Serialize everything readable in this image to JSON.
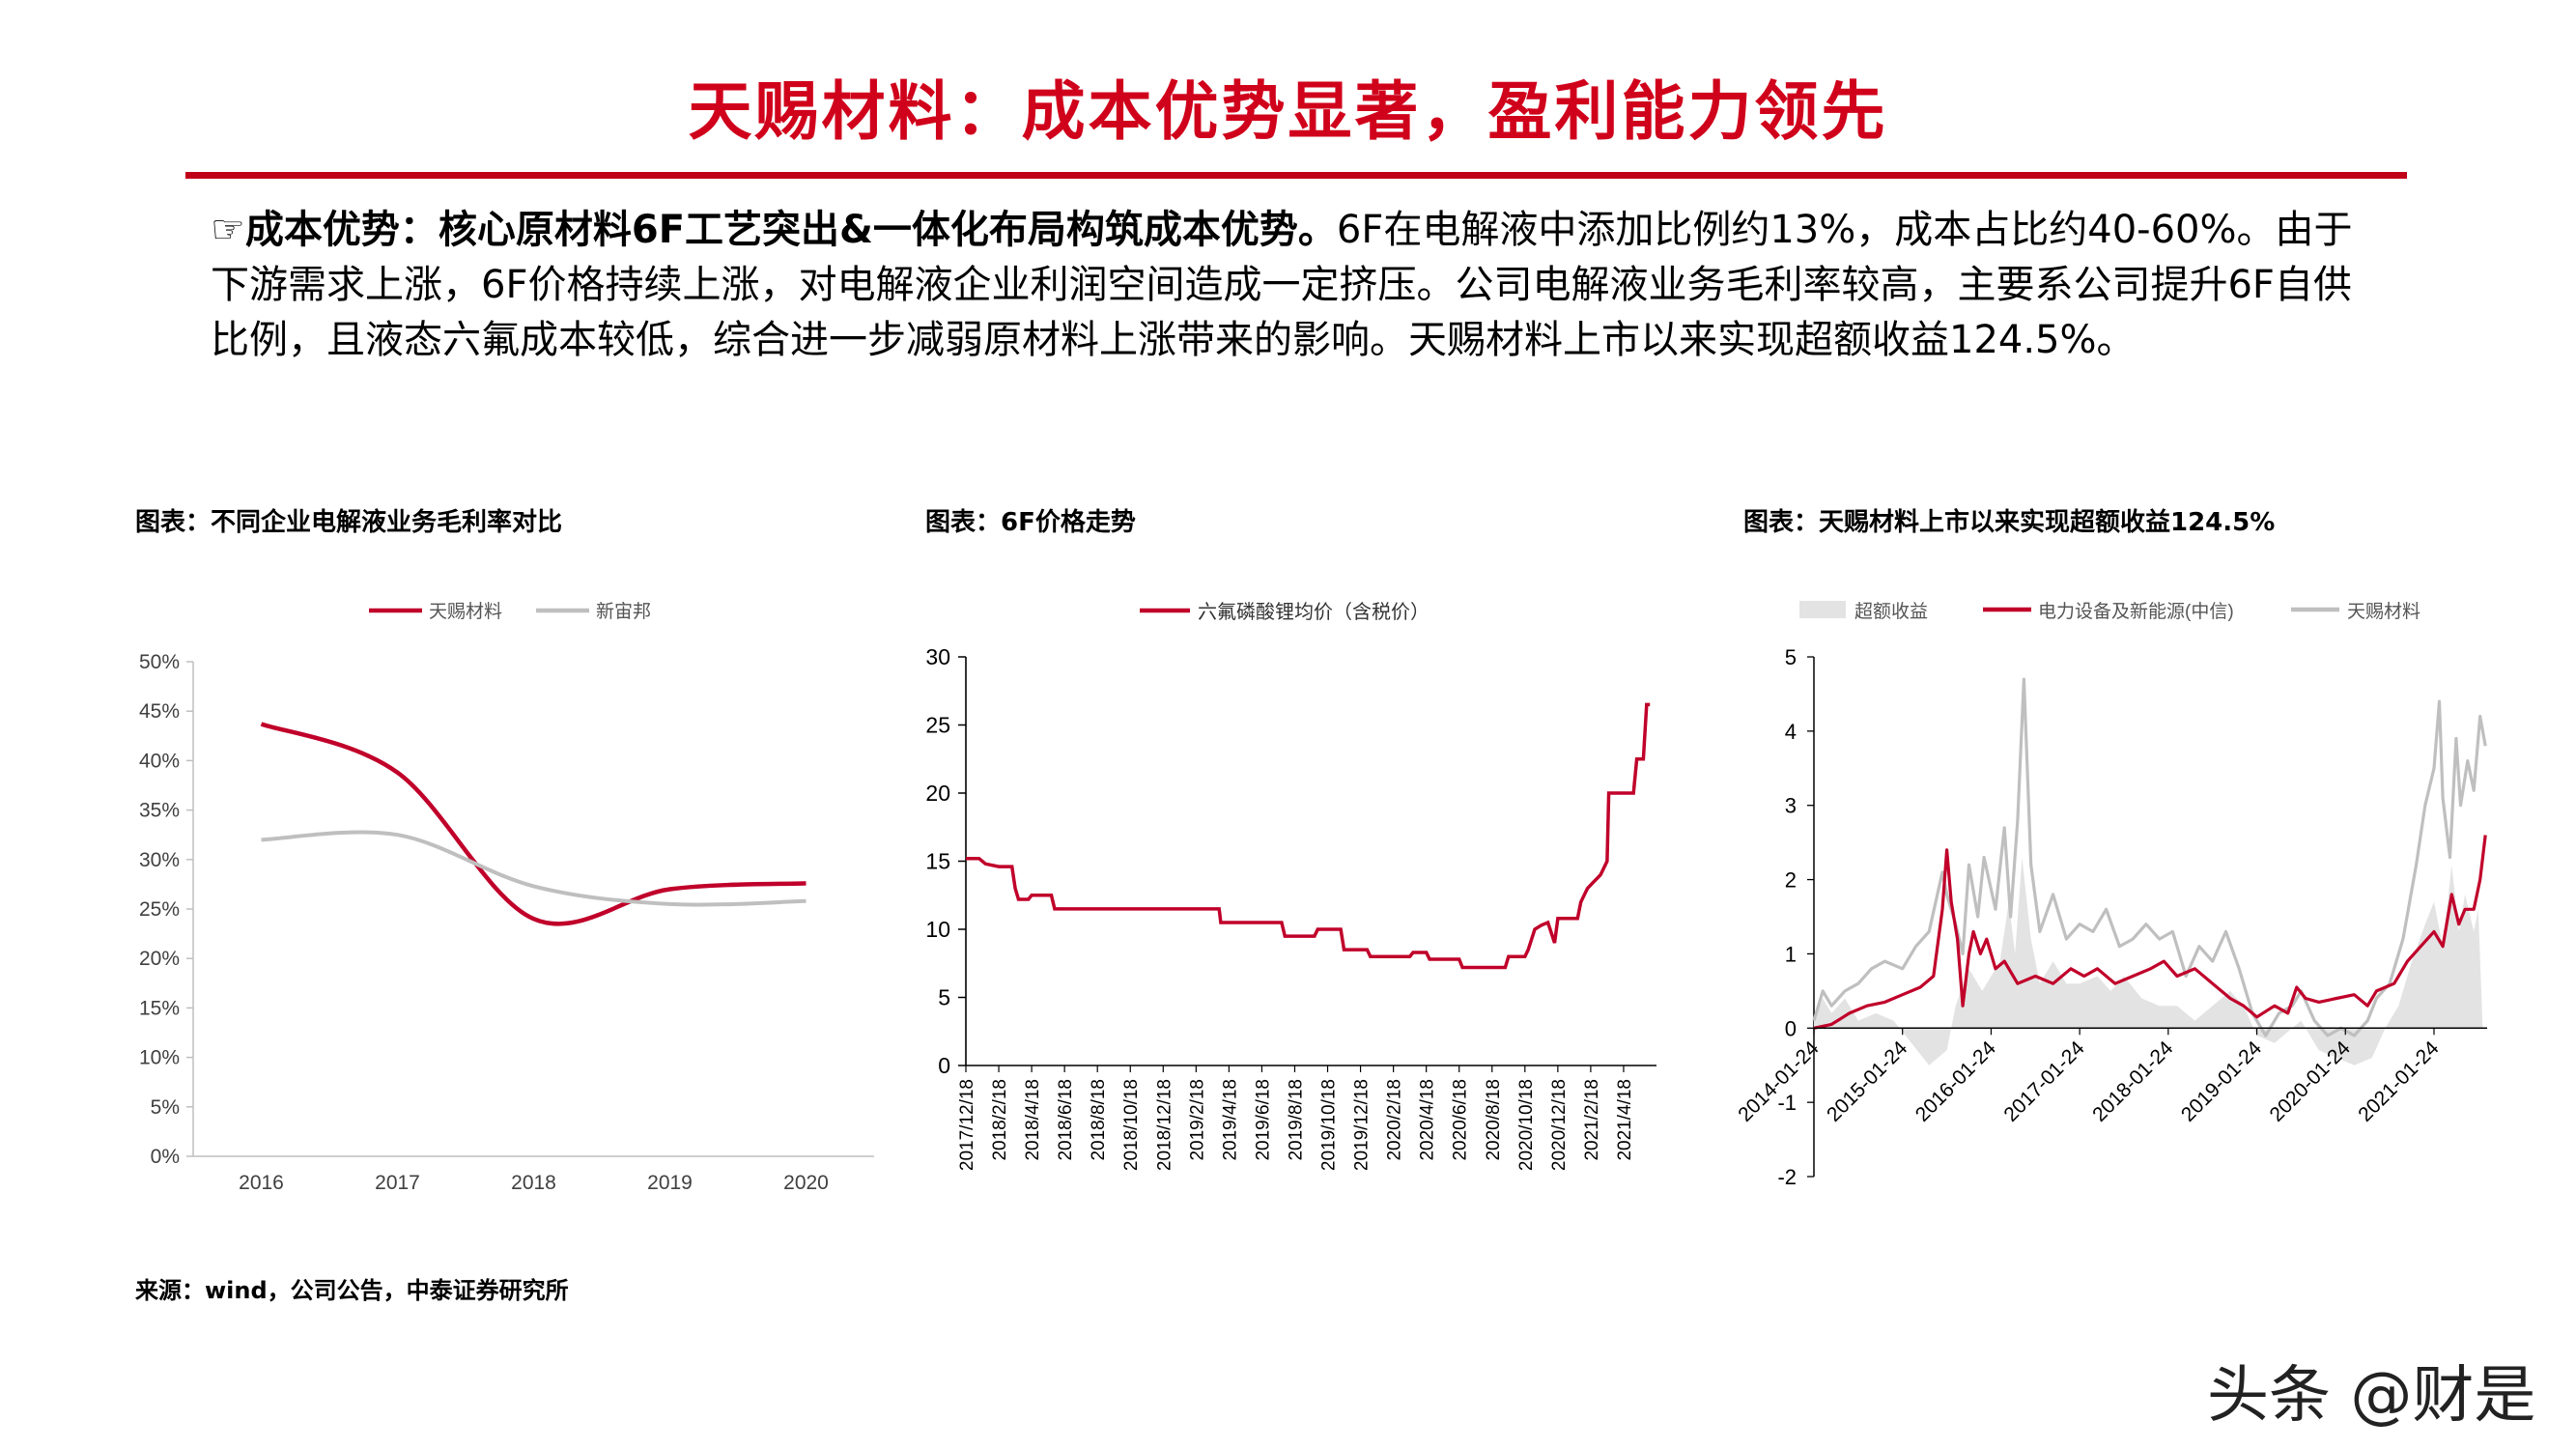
{
  "title": "天赐材料：成本优势显著，盈利能力领先",
  "paragraph": {
    "lead": "☞成本优势：核心原材料6F工艺突出&一体化布局构筑成本优势。",
    "body": "6F在电解液中添加比例约13%，成本占比约40-60%。由于下游需求上涨，6F价格持续上涨，对电解液企业利润空间造成一定挤压。公司电解液业务毛利率较高，主要系公司提升6F自供比例，且液态六氟成本较低，综合进一步减弱原材料上涨带来的影响。天赐材料上市以来实现超额收益124.5%。"
  },
  "figures": {
    "fig1_title": "图表：不同企业电解液业务毛利率对比",
    "fig2_title": "图表：6F价格走势",
    "fig3_title": "图表：天赐材料上市以来实现超额收益124.5%"
  },
  "source": "来源：wind，公司公告，中泰证券研究所",
  "watermark": "头条 @财是",
  "colors": {
    "red": "#c0002a",
    "gray": "#bfbfbf",
    "light": "#e3e3e3",
    "title_red": "#d0021b"
  },
  "chart_data": [
    {
      "type": "line",
      "categories": [
        "2016",
        "2017",
        "2018",
        "2019",
        "2020"
      ],
      "series": [
        {
          "name": "天赐材料",
          "values": [
            0.437,
            0.388,
            0.24,
            0.27,
            0.276
          ]
        },
        {
          "name": "新宙邦",
          "values": [
            0.32,
            0.325,
            0.273,
            0.255,
            0.258
          ]
        }
      ],
      "y_ticks": [
        "0%",
        "5%",
        "10%",
        "15%",
        "20%",
        "25%",
        "30%",
        "35%",
        "40%",
        "45%",
        "50%"
      ],
      "ylim": [
        0,
        0.5
      ],
      "legend": "top"
    },
    {
      "type": "line",
      "categories": [
        "2017/12/18",
        "2018/2/18",
        "2018/4/18",
        "2018/6/18",
        "2018/8/18",
        "2018/10/18",
        "2018/12/18",
        "2019/2/18",
        "2019/4/18",
        "2019/6/18",
        "2019/8/18",
        "2019/10/18",
        "2019/12/18",
        "2020/2/18",
        "2020/4/18",
        "2020/6/18",
        "2020/8/18",
        "2020/10/18",
        "2020/12/18",
        "2021/2/18",
        "2021/4/18"
      ],
      "series": [
        {
          "name": "六氟磷酸锂均价（含税价）",
          "points": [
            [
              0,
              15.2
            ],
            [
              0.4,
              15.2
            ],
            [
              0.6,
              14.8
            ],
            [
              1.0,
              14.6
            ],
            [
              1.4,
              14.6
            ],
            [
              1.5,
              13.0
            ],
            [
              1.6,
              12.2
            ],
            [
              1.9,
              12.2
            ],
            [
              2.0,
              12.5
            ],
            [
              2.6,
              12.5
            ],
            [
              2.7,
              11.5
            ],
            [
              4.5,
              11.5
            ],
            [
              7.7,
              11.5
            ],
            [
              7.75,
              10.5
            ],
            [
              9.6,
              10.5
            ],
            [
              9.7,
              9.5
            ],
            [
              10.6,
              9.5
            ],
            [
              10.7,
              10.0
            ],
            [
              11.4,
              10.0
            ],
            [
              11.5,
              8.5
            ],
            [
              12.2,
              8.5
            ],
            [
              12.3,
              8.0
            ],
            [
              13.5,
              8.0
            ],
            [
              13.6,
              8.3
            ],
            [
              14.0,
              8.3
            ],
            [
              14.1,
              7.8
            ],
            [
              15.0,
              7.8
            ],
            [
              15.1,
              7.2
            ],
            [
              16.4,
              7.2
            ],
            [
              16.5,
              8.0
            ],
            [
              17.0,
              8.0
            ],
            [
              17.1,
              8.5
            ],
            [
              17.3,
              10.0
            ],
            [
              17.5,
              10.3
            ],
            [
              17.7,
              10.5
            ],
            [
              17.9,
              9.0
            ],
            [
              18.0,
              10.8
            ],
            [
              18.6,
              10.8
            ],
            [
              18.7,
              12.0
            ],
            [
              18.9,
              13.0
            ],
            [
              19.1,
              13.5
            ],
            [
              19.3,
              14.0
            ],
            [
              19.5,
              15.0
            ],
            [
              19.55,
              20.0
            ],
            [
              20.3,
              20.0
            ],
            [
              20.4,
              22.5
            ],
            [
              20.6,
              22.5
            ],
            [
              20.7,
              26.5
            ],
            [
              20.8,
              26.5
            ]
          ]
        }
      ],
      "xlim": [
        0,
        21
      ],
      "y_ticks": [
        "0",
        "5",
        "10",
        "15",
        "20",
        "25",
        "30"
      ],
      "ylim": [
        0,
        30
      ],
      "legend": "top"
    },
    {
      "type": "area",
      "categories": [
        "2014-01-24",
        "2015-01-24",
        "2016-01-24",
        "2017-01-24",
        "2018-01-24",
        "2019-01-24",
        "2020-01-24",
        "2021-01-24"
      ],
      "xlim": [
        2014.0,
        2021.6
      ],
      "y_ticks": [
        "-2",
        "-1",
        "0",
        "1",
        "2",
        "3",
        "4",
        "5"
      ],
      "ylim": [
        -2,
        5
      ],
      "series": [
        {
          "name": "超额收益",
          "kind": "area",
          "points": [
            [
              2014.0,
              0.1
            ],
            [
              2014.1,
              0.4
            ],
            [
              2014.2,
              0.2
            ],
            [
              2014.35,
              0.4
            ],
            [
              2014.5,
              0.1
            ],
            [
              2014.7,
              0.2
            ],
            [
              2014.9,
              0.1
            ],
            [
              2015.1,
              -0.2
            ],
            [
              2015.3,
              -0.5
            ],
            [
              2015.5,
              -0.3
            ],
            [
              2015.6,
              0.3
            ],
            [
              2015.75,
              0.8
            ],
            [
              2015.9,
              0.5
            ],
            [
              2016.1,
              0.9
            ],
            [
              2016.2,
              1.7
            ],
            [
              2016.27,
              1.0
            ],
            [
              2016.35,
              2.3
            ],
            [
              2016.45,
              1.2
            ],
            [
              2016.55,
              0.6
            ],
            [
              2016.7,
              0.9
            ],
            [
              2016.85,
              0.6
            ],
            [
              2017.0,
              0.6
            ],
            [
              2017.2,
              0.7
            ],
            [
              2017.35,
              0.5
            ],
            [
              2017.5,
              0.7
            ],
            [
              2017.7,
              0.4
            ],
            [
              2017.9,
              0.3
            ],
            [
              2018.1,
              0.3
            ],
            [
              2018.3,
              0.1
            ],
            [
              2018.5,
              0.3
            ],
            [
              2018.7,
              0.5
            ],
            [
              2018.85,
              0.3
            ],
            [
              2019.0,
              -0.1
            ],
            [
              2019.2,
              -0.2
            ],
            [
              2019.4,
              0.0
            ],
            [
              2019.5,
              0.1
            ],
            [
              2019.7,
              -0.3
            ],
            [
              2019.9,
              -0.4
            ],
            [
              2020.1,
              -0.5
            ],
            [
              2020.3,
              -0.4
            ],
            [
              2020.45,
              0.0
            ],
            [
              2020.6,
              0.3
            ],
            [
              2020.75,
              0.9
            ],
            [
              2020.9,
              1.4
            ],
            [
              2021.0,
              1.7
            ],
            [
              2021.1,
              1.1
            ],
            [
              2021.2,
              2.2
            ],
            [
              2021.28,
              1.3
            ],
            [
              2021.35,
              1.8
            ],
            [
              2021.45,
              1.3
            ],
            [
              2021.5,
              1.6
            ],
            [
              2021.55,
              0.0
            ]
          ]
        },
        {
          "name": "电力设备及新能源(中信)",
          "kind": "line",
          "points": [
            [
              2014.0,
              0.0
            ],
            [
              2014.2,
              0.05
            ],
            [
              2014.4,
              0.2
            ],
            [
              2014.6,
              0.3
            ],
            [
              2014.8,
              0.35
            ],
            [
              2015.0,
              0.45
            ],
            [
              2015.2,
              0.55
            ],
            [
              2015.35,
              0.7
            ],
            [
              2015.45,
              1.6
            ],
            [
              2015.5,
              2.4
            ],
            [
              2015.55,
              1.7
            ],
            [
              2015.62,
              1.2
            ],
            [
              2015.68,
              0.3
            ],
            [
              2015.75,
              1.0
            ],
            [
              2015.8,
              1.3
            ],
            [
              2015.88,
              1.0
            ],
            [
              2015.95,
              1.2
            ],
            [
              2016.05,
              0.8
            ],
            [
              2016.15,
              0.9
            ],
            [
              2016.3,
              0.6
            ],
            [
              2016.5,
              0.7
            ],
            [
              2016.7,
              0.6
            ],
            [
              2016.9,
              0.8
            ],
            [
              2017.05,
              0.7
            ],
            [
              2017.2,
              0.8
            ],
            [
              2017.4,
              0.6
            ],
            [
              2017.6,
              0.7
            ],
            [
              2017.8,
              0.8
            ],
            [
              2017.95,
              0.9
            ],
            [
              2018.1,
              0.7
            ],
            [
              2018.3,
              0.8
            ],
            [
              2018.5,
              0.6
            ],
            [
              2018.7,
              0.4
            ],
            [
              2018.85,
              0.3
            ],
            [
              2019.0,
              0.15
            ],
            [
              2019.2,
              0.3
            ],
            [
              2019.35,
              0.2
            ],
            [
              2019.45,
              0.55
            ],
            [
              2019.55,
              0.4
            ],
            [
              2019.7,
              0.35
            ],
            [
              2019.9,
              0.4
            ],
            [
              2020.1,
              0.45
            ],
            [
              2020.25,
              0.3
            ],
            [
              2020.35,
              0.5
            ],
            [
              2020.55,
              0.6
            ],
            [
              2020.7,
              0.9
            ],
            [
              2020.85,
              1.1
            ],
            [
              2021.0,
              1.3
            ],
            [
              2021.1,
              1.1
            ],
            [
              2021.2,
              1.8
            ],
            [
              2021.28,
              1.4
            ],
            [
              2021.35,
              1.6
            ],
            [
              2021.45,
              1.6
            ],
            [
              2021.52,
              2.0
            ],
            [
              2021.58,
              2.6
            ]
          ]
        },
        {
          "name": "天赐材料",
          "kind": "line",
          "points": [
            [
              2014.0,
              0.1
            ],
            [
              2014.1,
              0.5
            ],
            [
              2014.2,
              0.3
            ],
            [
              2014.35,
              0.5
            ],
            [
              2014.5,
              0.6
            ],
            [
              2014.65,
              0.8
            ],
            [
              2014.8,
              0.9
            ],
            [
              2015.0,
              0.8
            ],
            [
              2015.15,
              1.1
            ],
            [
              2015.3,
              1.3
            ],
            [
              2015.45,
              2.1
            ],
            [
              2015.5,
              1.8
            ],
            [
              2015.6,
              1.4
            ],
            [
              2015.68,
              1.0
            ],
            [
              2015.75,
              2.2
            ],
            [
              2015.85,
              1.5
            ],
            [
              2015.92,
              2.3
            ],
            [
              2016.05,
              1.6
            ],
            [
              2016.15,
              2.7
            ],
            [
              2016.22,
              1.5
            ],
            [
              2016.3,
              2.8
            ],
            [
              2016.37,
              4.7
            ],
            [
              2016.45,
              2.2
            ],
            [
              2016.55,
              1.3
            ],
            [
              2016.7,
              1.8
            ],
            [
              2016.85,
              1.2
            ],
            [
              2017.0,
              1.4
            ],
            [
              2017.15,
              1.3
            ],
            [
              2017.3,
              1.6
            ],
            [
              2017.45,
              1.1
            ],
            [
              2017.6,
              1.2
            ],
            [
              2017.75,
              1.4
            ],
            [
              2017.9,
              1.2
            ],
            [
              2018.05,
              1.3
            ],
            [
              2018.2,
              0.7
            ],
            [
              2018.35,
              1.1
            ],
            [
              2018.5,
              0.9
            ],
            [
              2018.65,
              1.3
            ],
            [
              2018.8,
              0.8
            ],
            [
              2018.95,
              0.2
            ],
            [
              2019.1,
              -0.1
            ],
            [
              2019.25,
              0.2
            ],
            [
              2019.4,
              0.3
            ],
            [
              2019.5,
              0.5
            ],
            [
              2019.65,
              0.1
            ],
            [
              2019.8,
              -0.1
            ],
            [
              2019.95,
              0.0
            ],
            [
              2020.1,
              -0.1
            ],
            [
              2020.25,
              0.1
            ],
            [
              2020.35,
              0.4
            ],
            [
              2020.5,
              0.6
            ],
            [
              2020.65,
              1.2
            ],
            [
              2020.8,
              2.2
            ],
            [
              2020.9,
              3.0
            ],
            [
              2021.0,
              3.5
            ],
            [
              2021.06,
              4.4
            ],
            [
              2021.1,
              3.1
            ],
            [
              2021.18,
              2.3
            ],
            [
              2021.25,
              3.9
            ],
            [
              2021.3,
              3.0
            ],
            [
              2021.38,
              3.6
            ],
            [
              2021.45,
              3.2
            ],
            [
              2021.52,
              4.2
            ],
            [
              2021.58,
              3.8
            ]
          ]
        }
      ],
      "legend": "top"
    }
  ]
}
